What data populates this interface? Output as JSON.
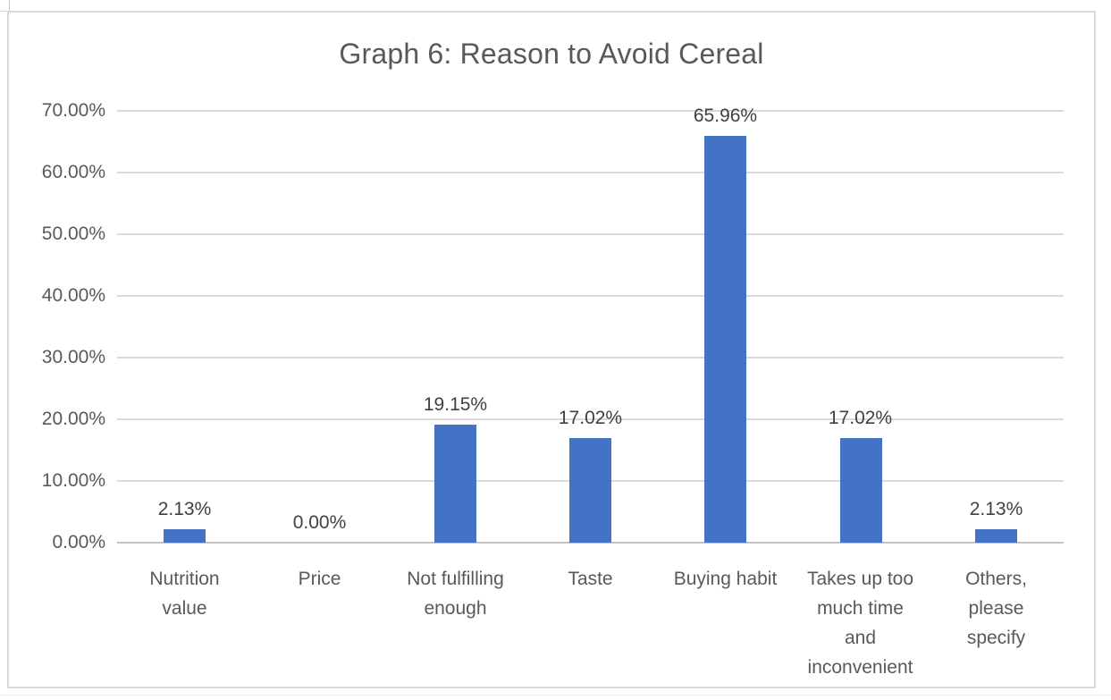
{
  "chart_data": {
    "type": "bar",
    "title": "Graph 6: Reason to Avoid Cereal",
    "categories": [
      "Nutrition value",
      "Price",
      "Not fulfilling enough",
      "Taste",
      "Buying habit",
      "Takes up too much time and inconvenient",
      "Others, please specify"
    ],
    "category_lines": [
      [
        "Nutrition",
        "value"
      ],
      [
        "Price"
      ],
      [
        "Not fulfilling",
        "enough"
      ],
      [
        "Taste"
      ],
      [
        "Buying habit"
      ],
      [
        "Takes up too",
        "much time",
        "and",
        "inconvenient"
      ],
      [
        "Others,",
        "please",
        "specify"
      ]
    ],
    "values": [
      2.13,
      0.0,
      19.15,
      17.02,
      65.96,
      17.02,
      2.13
    ],
    "data_labels": [
      "2.13%",
      "0.00%",
      "19.15%",
      "17.02%",
      "65.96%",
      "17.02%",
      "2.13%"
    ],
    "y_ticks": [
      "70.00%",
      "60.00%",
      "50.00%",
      "40.00%",
      "30.00%",
      "20.00%",
      "10.00%",
      "0.00%"
    ],
    "ylim": [
      0,
      70
    ],
    "y_step": 10,
    "xlabel": "",
    "ylabel": "",
    "grid": true,
    "legend": "none",
    "colors": {
      "bar": "#4472c4",
      "gridline": "#d9d9d9",
      "axis_line": "#c3c1c1",
      "title_text": "#595959",
      "axis_text": "#595959",
      "data_label_text": "#404040",
      "frame_border": "#d9d9d9",
      "background": "#ffffff"
    }
  }
}
